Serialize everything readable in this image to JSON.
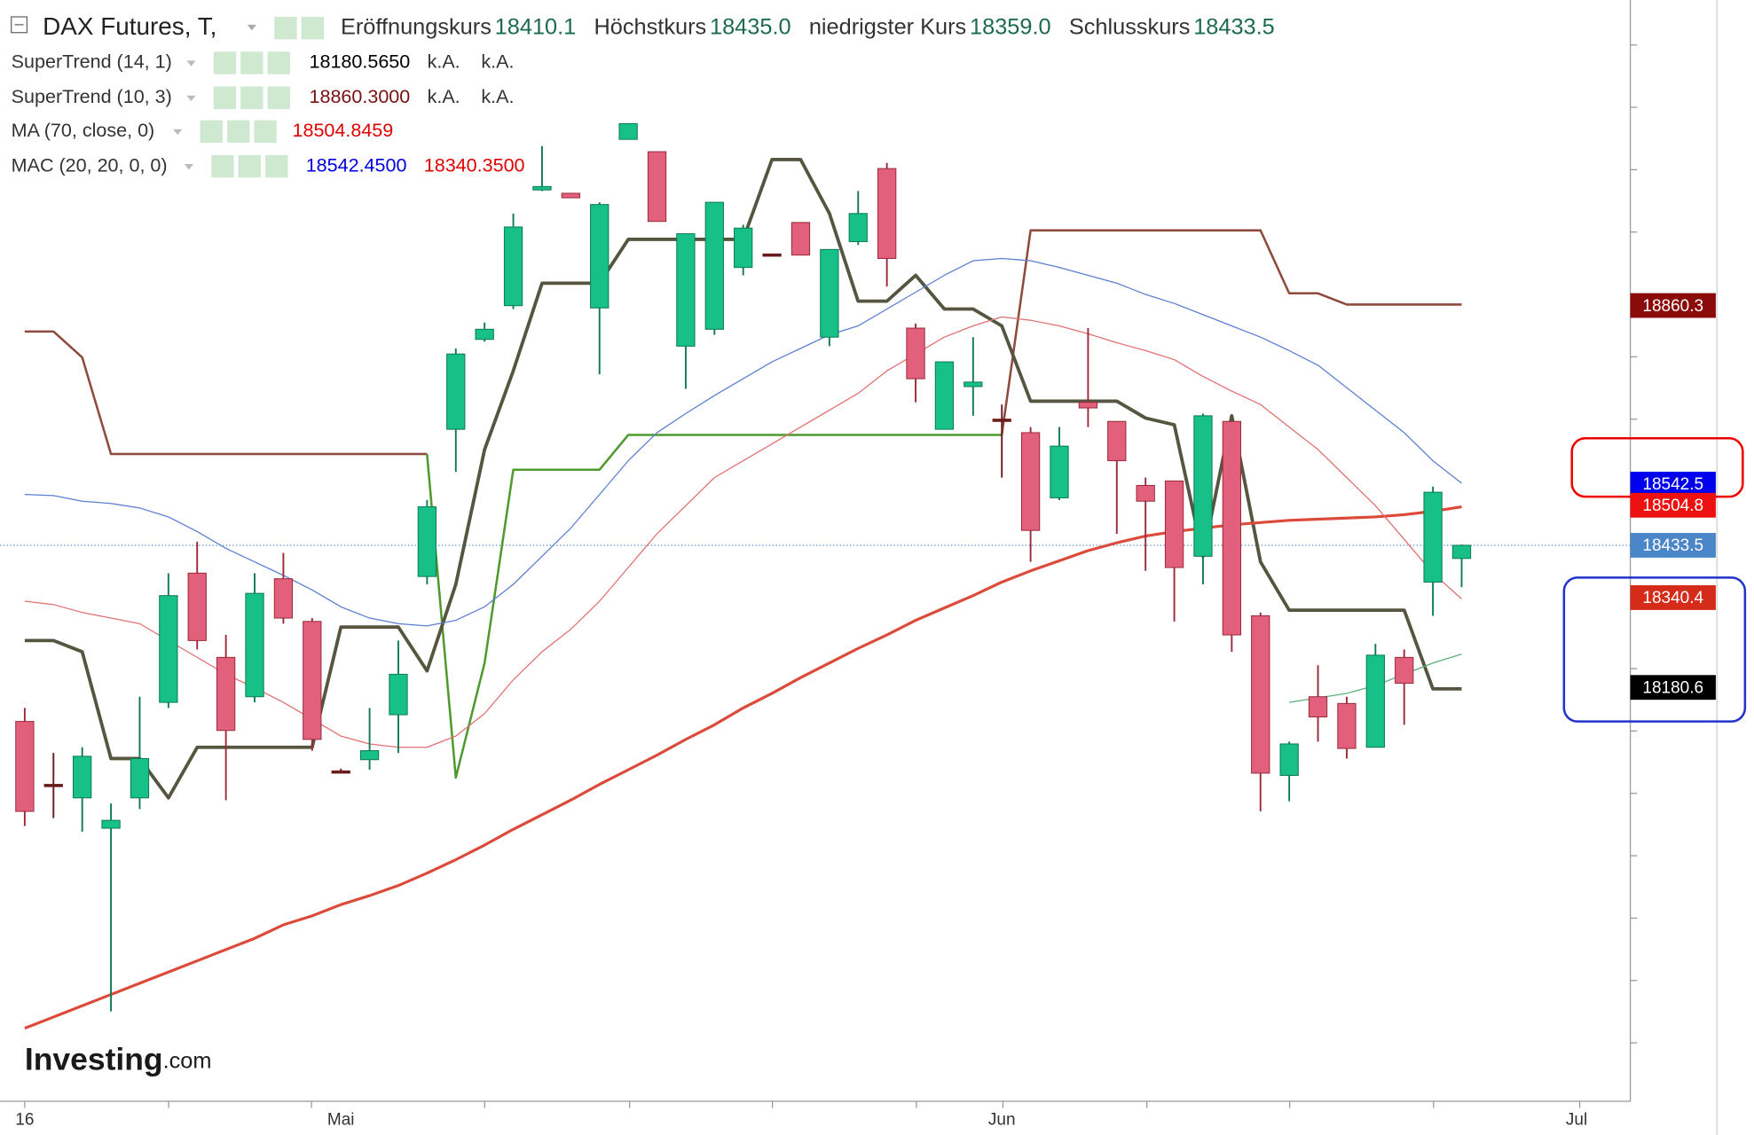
{
  "header": {
    "title": "DAX Futures, T,",
    "ohlc": [
      {
        "label": "Eröffnungskurs",
        "value": "18410.1"
      },
      {
        "label": "Höchstkurs",
        "value": "18435.0"
      },
      {
        "label": "niedrigster Kurs",
        "value": "18359.0"
      },
      {
        "label": "Schlusskurs",
        "value": "18433.5"
      }
    ]
  },
  "indicators": [
    {
      "name": "SuperTrend (14, 1)",
      "values": [
        "18180.5650",
        "k.A.",
        "k.A."
      ],
      "colors": [
        "#000000",
        "#333333",
        "#333333"
      ]
    },
    {
      "name": "SuperTrend (10, 3)",
      "values": [
        "18860.3000",
        "k.A.",
        "k.A."
      ],
      "colors": [
        "#7a1010",
        "#333333",
        "#333333"
      ]
    },
    {
      "name": "MA (70, close, 0)",
      "values": [
        "18504.8459"
      ],
      "colors": [
        "#e00000"
      ]
    },
    {
      "name": "MAC (20, 20, 0, 0)",
      "values": [
        "18542.4500",
        "18340.3500"
      ],
      "colors": [
        "#0000e0",
        "#e00000"
      ]
    }
  ],
  "watermark": [
    "Investing",
    ".com"
  ],
  "chart_data": {
    "type": "candlestick",
    "categories": [
      "16",
      null,
      null,
      null,
      null,
      null,
      null,
      null,
      null,
      null,
      null,
      "Mai",
      null,
      null,
      null,
      null,
      null,
      null,
      null,
      null,
      null,
      null,
      null,
      null,
      null,
      null,
      null,
      null,
      null,
      null,
      null,
      null,
      null,
      null,
      "Jun",
      null,
      null,
      null,
      null,
      null,
      null,
      null,
      null,
      null,
      null,
      null,
      null,
      null,
      null,
      null,
      null
    ],
    "extra_x_label": "Jul",
    "open": [
      18120,
      18008,
      17984,
      17930,
      17984,
      18154,
      18384,
      18234,
      18164,
      18374,
      18298,
      18032,
      18052,
      18132,
      18378,
      18640,
      18800,
      18860,
      19066,
      19060,
      18856,
      19156,
      19134,
      18788,
      18818,
      18928,
      18952,
      19008,
      18804,
      18974,
      19104,
      18820,
      18640,
      18716,
      18658,
      18634,
      18518,
      18688,
      18654,
      18540,
      18548,
      18414,
      18654,
      18308,
      18024,
      18164,
      18152,
      18074,
      18234,
      18368,
      18410.1
    ],
    "high": [
      18144,
      18064,
      18074,
      17974,
      18164,
      18384,
      18440,
      18274,
      18384,
      18420,
      18304,
      18036,
      18144,
      18264,
      18514,
      18784,
      18830,
      19024,
      19144,
      19060,
      19044,
      19184,
      19134,
      18988,
      19044,
      19004,
      18952,
      19008,
      18960,
      19064,
      19114,
      18828,
      18760,
      18804,
      18684,
      18644,
      18644,
      18820,
      18654,
      18554,
      18548,
      18668,
      18654,
      18314,
      18084,
      18220,
      18164,
      18258,
      18248,
      18538,
      18435
    ],
    "low": [
      17934,
      17948,
      17924,
      17604,
      17964,
      18144,
      18248,
      17980,
      18154,
      18294,
      18068,
      18028,
      18034,
      18064,
      18364,
      18564,
      18796,
      18854,
      19064,
      19052,
      18738,
      19156,
      19010,
      18712,
      18808,
      18914,
      18952,
      18950,
      18788,
      18968,
      18894,
      18688,
      18640,
      18664,
      18554,
      18404,
      18514,
      18644,
      18454,
      18388,
      18298,
      18364,
      18244,
      17960,
      17978,
      18084,
      18054,
      18074,
      18114,
      18308,
      18359
    ],
    "close": [
      17960,
      18008,
      18058,
      17944,
      18054,
      18344,
      18264,
      18104,
      18348,
      18304,
      18088,
      18032,
      18068,
      18204,
      18502,
      18774,
      18818,
      19000,
      19072,
      19052,
      19040,
      19184,
      19010,
      18988,
      19044,
      18998,
      18952,
      18950,
      18960,
      19024,
      18944,
      18730,
      18760,
      18724,
      18658,
      18460,
      18610,
      18678,
      18584,
      18512,
      18394,
      18664,
      18274,
      18028,
      18080,
      18128,
      18072,
      18238,
      18188,
      18528,
      18433.5
    ],
    "up_color": "#17c087",
    "down_color": "#e2607c",
    "doji_color": "#6b1a1a",
    "ylim": [
      17444,
      19404
    ],
    "lines": [
      {
        "color": "#8e4a3c",
        "width": 2,
        "values": [
          18814,
          18814,
          18768,
          18596,
          18596,
          18596,
          18596,
          18596,
          18596,
          18596,
          18596,
          18596,
          18596,
          18596,
          18596,
          null,
          null,
          null,
          null,
          null,
          null,
          null,
          null,
          null,
          null,
          null,
          null,
          null,
          null,
          null,
          null,
          null,
          null,
          null,
          18630,
          18994,
          18994,
          18994,
          18994,
          18994,
          18994,
          18994,
          18994,
          18994,
          18882,
          18882,
          18862,
          18862,
          18862,
          18862,
          18862
        ]
      },
      {
        "color": "#4e9a2e",
        "width": 2,
        "values": [
          null,
          null,
          null,
          null,
          null,
          null,
          null,
          null,
          null,
          null,
          null,
          null,
          null,
          null,
          18596,
          18020,
          18224,
          18568,
          18568,
          18568,
          18568,
          18630,
          18630,
          18630,
          18630,
          18630,
          18630,
          18630,
          18630,
          18630,
          18630,
          18630,
          18630,
          18630,
          18630,
          null,
          null,
          null,
          null,
          null,
          null,
          null,
          null,
          null,
          null,
          null,
          null,
          null,
          null,
          null,
          null
        ]
      },
      {
        "color": "#555540",
        "width": 3,
        "values": [
          18264,
          18264,
          18244,
          18054,
          18054,
          17984,
          18074,
          18074,
          18074,
          18074,
          18074,
          18288,
          18288,
          18288,
          18210,
          18364,
          18604,
          18744,
          18900,
          18900,
          18900,
          18978,
          18978,
          18978,
          18978,
          18978,
          19120,
          19120,
          19024,
          18868,
          18868,
          18914,
          18854,
          18854,
          18824,
          18690,
          18690,
          18690,
          18690,
          18660,
          18648,
          18414,
          18664,
          18404,
          18318,
          18318,
          18318,
          18318,
          18318,
          18178,
          18178
        ]
      },
      {
        "color": "#dc4a3a",
        "width": 2.5,
        "values": [
          17574,
          17594,
          17614,
          17634,
          17654,
          17674,
          17694,
          17714,
          17734,
          17758,
          17774,
          17794,
          17810,
          17828,
          17850,
          17874,
          17900,
          17928,
          17954,
          17980,
          18008,
          18034,
          18060,
          18088,
          18114,
          18144,
          18170,
          18198,
          18224,
          18250,
          18274,
          18300,
          18322,
          18344,
          18368,
          18388,
          18406,
          18424,
          18438,
          18450,
          18458,
          18464,
          18470,
          18474,
          18478,
          18480,
          18482,
          18484,
          18488,
          18494,
          18502
        ]
      },
      {
        "color": "#5a7fd0",
        "width": 1,
        "values": [
          18524,
          18522,
          18512,
          18508,
          18500,
          18484,
          18458,
          18428,
          18404,
          18380,
          18354,
          18324,
          18304,
          18294,
          18290,
          18300,
          18324,
          18364,
          18414,
          18464,
          18524,
          18584,
          18634,
          18668,
          18700,
          18730,
          18760,
          18784,
          18808,
          18824,
          18854,
          18884,
          18914,
          18940,
          18944,
          18940,
          18928,
          18914,
          18900,
          18880,
          18864,
          18844,
          18824,
          18804,
          18780,
          18754,
          18714,
          18674,
          18634,
          18584,
          18544
        ]
      },
      {
        "color": "#e07070",
        "width": 1,
        "values": [
          18334,
          18328,
          18314,
          18304,
          18294,
          18264,
          18234,
          18204,
          18180,
          18154,
          18124,
          18094,
          18080,
          18074,
          18074,
          18094,
          18134,
          18194,
          18244,
          18284,
          18334,
          18394,
          18454,
          18504,
          18554,
          18584,
          18614,
          18644,
          18674,
          18704,
          18744,
          18774,
          18804,
          18824,
          18840,
          18834,
          18824,
          18810,
          18794,
          18780,
          18764,
          18734,
          18708,
          18684,
          18644,
          18604,
          18554,
          18504,
          18444,
          18384,
          18338
        ]
      },
      {
        "color": "#5ab07a",
        "width": 1,
        "values": [
          null,
          null,
          null,
          null,
          null,
          null,
          null,
          null,
          null,
          null,
          null,
          null,
          null,
          null,
          null,
          null,
          null,
          null,
          null,
          null,
          null,
          null,
          null,
          null,
          null,
          null,
          null,
          null,
          null,
          null,
          null,
          null,
          null,
          null,
          null,
          null,
          null,
          null,
          null,
          null,
          null,
          null,
          null,
          null,
          18154,
          18162,
          18170,
          18184,
          18204,
          18224,
          18240
        ]
      }
    ],
    "current_price": 18433.5,
    "price_labels": [
      {
        "value": 18860.3,
        "color": "#8b0a0a"
      },
      {
        "value": 18542.5,
        "color": "#0000ee"
      },
      {
        "value": 18504.8,
        "color": "#ee1111"
      },
      {
        "value": 18433.5,
        "color": "#4a86c8"
      },
      {
        "value": 18340.4,
        "color": "#d42b1a"
      },
      {
        "value": 18180.6,
        "color": "#000000"
      }
    ]
  }
}
